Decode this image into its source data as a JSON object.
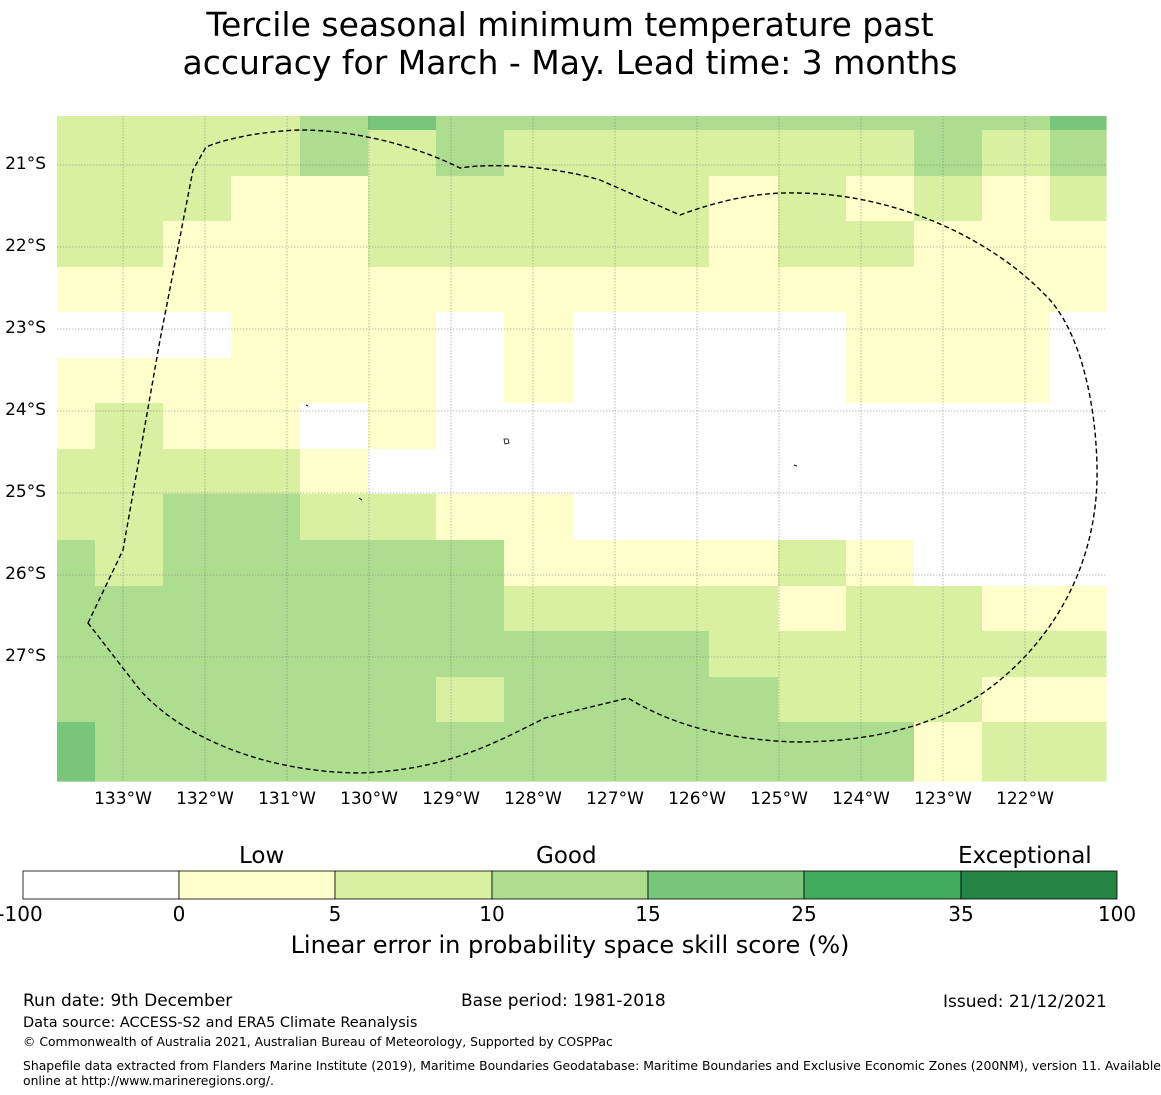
{
  "title": {
    "line1": "Tercile seasonal minimum temperature past",
    "line2": "accuracy for March - May. Lead time: 3 months"
  },
  "map": {
    "lat_labels": [
      "21°S",
      "22°S",
      "23°S",
      "24°S",
      "25°S",
      "26°S",
      "27°S"
    ],
    "lon_labels": [
      "133°W",
      "132°W",
      "131°W",
      "130°W",
      "129°W",
      "128°W",
      "127°W",
      "126°W",
      "125°W",
      "124°W",
      "123°W",
      "122°W"
    ],
    "grid_columns": 16,
    "grid_rows": 15,
    "skill_categories_grid": [
      [
        2,
        2,
        2,
        2,
        3,
        4,
        3,
        3,
        3,
        3,
        3,
        3,
        3,
        3,
        3,
        4
      ],
      [
        2,
        2,
        2,
        2,
        3,
        2,
        3,
        2,
        2,
        2,
        2,
        2,
        2,
        3,
        2,
        3
      ],
      [
        2,
        2,
        2,
        1,
        1,
        2,
        2,
        2,
        2,
        2,
        1,
        2,
        1,
        2,
        1,
        2
      ],
      [
        2,
        2,
        1,
        1,
        1,
        2,
        2,
        2,
        2,
        2,
        1,
        2,
        2,
        1,
        1,
        1
      ],
      [
        1,
        1,
        1,
        1,
        1,
        1,
        1,
        1,
        1,
        1,
        1,
        1,
        1,
        1,
        1,
        1
      ],
      [
        0,
        0,
        0,
        1,
        1,
        1,
        0,
        1,
        0,
        0,
        0,
        0,
        1,
        1,
        1,
        0
      ],
      [
        1,
        1,
        1,
        1,
        1,
        1,
        0,
        1,
        0,
        0,
        0,
        0,
        1,
        1,
        1,
        0
      ],
      [
        1,
        2,
        1,
        1,
        0,
        1,
        0,
        0,
        0,
        0,
        0,
        0,
        0,
        0,
        0,
        0
      ],
      [
        2,
        2,
        2,
        2,
        1,
        0,
        0,
        0,
        0,
        0,
        0,
        0,
        0,
        0,
        0,
        0
      ],
      [
        2,
        2,
        3,
        3,
        2,
        2,
        1,
        1,
        0,
        0,
        0,
        0,
        0,
        0,
        0,
        0
      ],
      [
        3,
        2,
        3,
        3,
        3,
        3,
        3,
        1,
        1,
        1,
        1,
        2,
        1,
        0,
        0,
        0
      ],
      [
        3,
        3,
        3,
        3,
        3,
        3,
        3,
        2,
        2,
        2,
        2,
        1,
        2,
        2,
        1,
        1
      ],
      [
        3,
        3,
        3,
        3,
        3,
        3,
        3,
        3,
        3,
        3,
        2,
        2,
        2,
        2,
        2,
        2
      ],
      [
        3,
        3,
        3,
        3,
        3,
        3,
        2,
        3,
        3,
        3,
        3,
        2,
        2,
        2,
        1,
        1
      ],
      [
        4,
        3,
        3,
        3,
        3,
        3,
        3,
        3,
        3,
        3,
        3,
        3,
        3,
        1,
        2,
        2
      ]
    ]
  },
  "colorbar": {
    "categories": [
      {
        "label": "Low"
      },
      {
        "label": "Good"
      },
      {
        "label": "Exceptional"
      }
    ],
    "colors": [
      "#ffffff",
      "#ffffcc",
      "#d9f0a3",
      "#addd8e",
      "#78c679",
      "#41ab5d",
      "#238443"
    ],
    "ticks": [
      "-100",
      "0",
      "5",
      "10",
      "15",
      "25",
      "35",
      "100"
    ],
    "label": "Linear error in probability space skill score (%)"
  },
  "footer": {
    "run_date": "Run date: 9th December",
    "base_period": "Base period: 1981-2018",
    "issued": "Issued: 21/12/2021",
    "data_source": "Data source: ACCESS-S2 and ERA5 Climate Reanalysis",
    "copyright": "© Commonwealth of Australia 2021, Australian Bureau of Meteorology, Supported by COSPPac",
    "shapefile_line1": "Shapefile data extracted from Flanders Marine Institute (2019), Maritime Boundaries Geodatabase: Maritime Boundaries and Exclusive Economic Zones (200NM), version 11. Available",
    "shapefile_line2": "online at http://www.marineregions.org/."
  }
}
